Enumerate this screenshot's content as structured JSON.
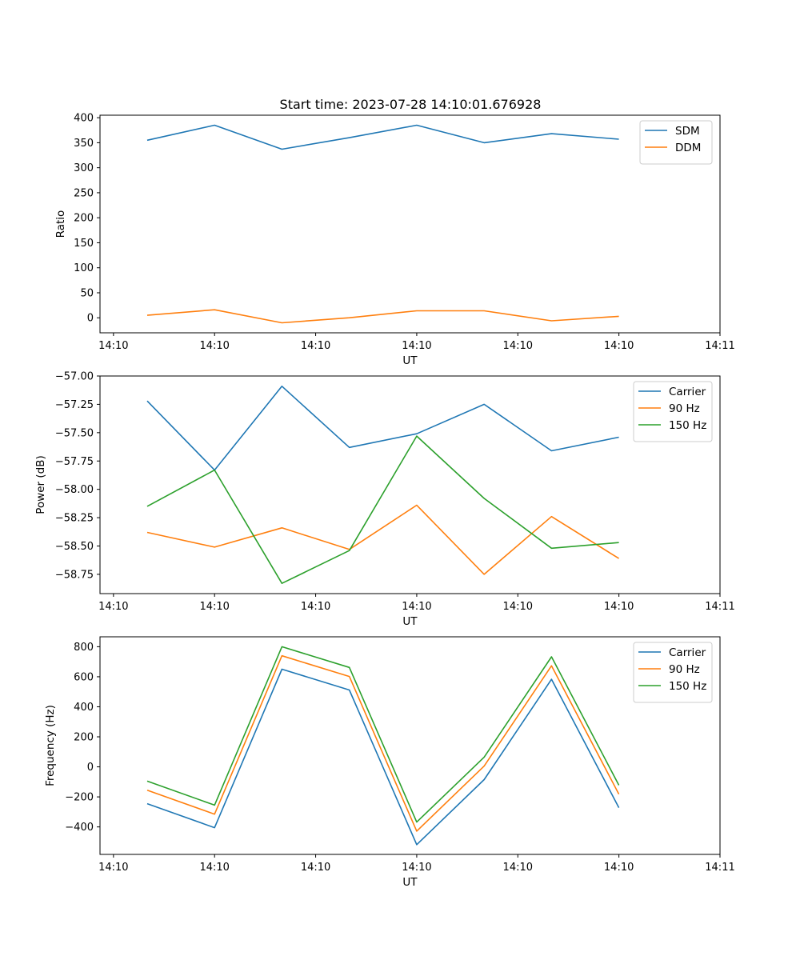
{
  "figure_title": "Start time: 2023-07-28 14:10:01.676928",
  "chart_data": [
    {
      "type": "line",
      "title": "Start time: 2023-07-28 14:10:01.676928",
      "xlabel": "UT",
      "ylabel": "Ratio",
      "x_index": [
        0,
        1,
        2,
        3,
        4,
        5,
        6,
        7
      ],
      "x_tick_positions": [
        -0.5,
        1,
        2.5,
        4,
        5.5,
        7,
        8.5
      ],
      "x_tick_labels": [
        "14:10",
        "14:10",
        "14:10",
        "14:10",
        "14:10",
        "14:10",
        "14:11"
      ],
      "xlim": [
        -0.7,
        8.5
      ],
      "ylim": [
        -30,
        405
      ],
      "y_ticks": [
        0,
        50,
        100,
        150,
        200,
        250,
        300,
        350,
        400
      ],
      "y_tick_labels": [
        "0",
        "50",
        "100",
        "150",
        "200",
        "250",
        "300",
        "350",
        "400"
      ],
      "legend": "top-right",
      "series": [
        {
          "name": "SDM",
          "color": "#1f77b4",
          "values": [
            355,
            385,
            337,
            360,
            385,
            350,
            368,
            357
          ]
        },
        {
          "name": "DDM",
          "color": "#ff7f0e",
          "values": [
            5,
            16,
            -10,
            0,
            14,
            14,
            -6,
            3
          ]
        }
      ]
    },
    {
      "type": "line",
      "title": "",
      "xlabel": "UT",
      "ylabel": "Power (dB)",
      "x_index": [
        0,
        1,
        2,
        3,
        4,
        5,
        6,
        7
      ],
      "x_tick_positions": [
        -0.5,
        1,
        2.5,
        4,
        5.5,
        7,
        8.5
      ],
      "x_tick_labels": [
        "14:10",
        "14:10",
        "14:10",
        "14:10",
        "14:10",
        "14:10",
        "14:11"
      ],
      "xlim": [
        -0.7,
        8.5
      ],
      "ylim": [
        -58.92,
        -57.0
      ],
      "y_ticks": [
        -58.75,
        -58.5,
        -58.25,
        -58.0,
        -57.75,
        -57.5,
        -57.25,
        -57.0
      ],
      "y_tick_labels": [
        "−58.75",
        "−58.50",
        "−58.25",
        "−58.00",
        "−57.75",
        "−57.50",
        "−57.25",
        "−57.00"
      ],
      "legend": "top-right",
      "series": [
        {
          "name": "Carrier",
          "color": "#1f77b4",
          "values": [
            -57.22,
            -57.83,
            -57.09,
            -57.63,
            -57.51,
            -57.25,
            -57.66,
            -57.54
          ]
        },
        {
          "name": "90 Hz",
          "color": "#ff7f0e",
          "values": [
            -58.38,
            -58.51,
            -58.34,
            -58.53,
            -58.14,
            -58.75,
            -58.24,
            -58.61
          ]
        },
        {
          "name": "150 Hz",
          "color": "#2ca02c",
          "values": [
            -58.15,
            -57.83,
            -58.83,
            -58.54,
            -57.53,
            -58.08,
            -58.52,
            -58.47
          ]
        }
      ]
    },
    {
      "type": "line",
      "title": "",
      "xlabel": "UT",
      "ylabel": "Frequency (Hz)",
      "x_index": [
        0,
        1,
        2,
        3,
        4,
        5,
        6,
        7
      ],
      "x_tick_positions": [
        -0.5,
        1,
        2.5,
        4,
        5.5,
        7,
        8.5
      ],
      "x_tick_labels": [
        "14:10",
        "14:10",
        "14:10",
        "14:10",
        "14:10",
        "14:10",
        "14:11"
      ],
      "xlim": [
        -0.7,
        8.5
      ],
      "ylim": [
        -583,
        866
      ],
      "y_ticks": [
        -400,
        -200,
        0,
        200,
        400,
        600,
        800
      ],
      "y_tick_labels": [
        "−400",
        "−200",
        "0",
        "200",
        "400",
        "600",
        "800"
      ],
      "legend": "top-right",
      "series": [
        {
          "name": "Carrier",
          "color": "#1f77b4",
          "values": [
            -245,
            -405,
            650,
            512,
            -518,
            -85,
            583,
            -272
          ]
        },
        {
          "name": "90 Hz",
          "color": "#ff7f0e",
          "values": [
            -155,
            -315,
            740,
            602,
            -428,
            5,
            673,
            -182
          ]
        },
        {
          "name": "150 Hz",
          "color": "#2ca02c",
          "values": [
            -95,
            -255,
            800,
            662,
            -368,
            65,
            733,
            -122
          ]
        }
      ]
    }
  ]
}
